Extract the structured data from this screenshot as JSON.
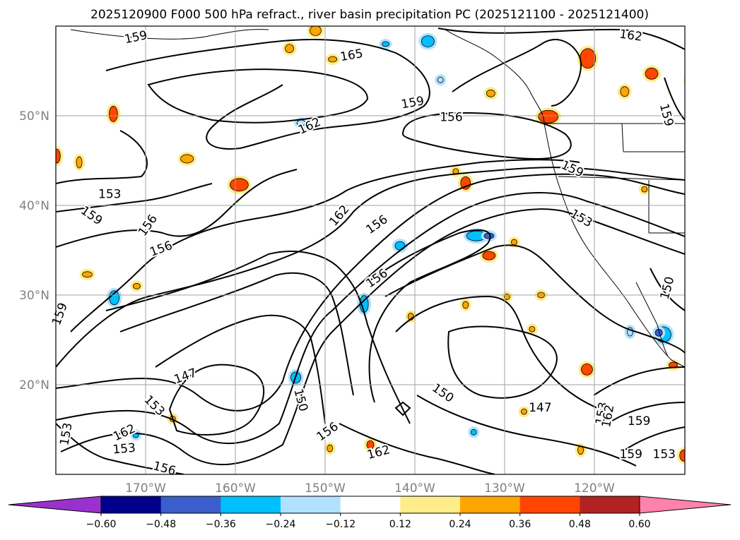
{
  "chart_data": {
    "type": "heatmap",
    "title": "2025120900 F000 500 hPa refract., river basin precipitation PC (2025121100 - 2025121400)",
    "xlabel": "",
    "ylabel": "",
    "xlim": [
      -180,
      -110
    ],
    "ylim": [
      10,
      60
    ],
    "lat_ticks": [
      {
        "value": 20,
        "label": "20°N"
      },
      {
        "value": 30,
        "label": "30°N"
      },
      {
        "value": 40,
        "label": "40°N"
      },
      {
        "value": 50,
        "label": "50°N"
      }
    ],
    "lon_ticks": [
      {
        "value": -170,
        "label": "170°W"
      },
      {
        "value": -160,
        "label": "160°W"
      },
      {
        "value": -150,
        "label": "150°W"
      },
      {
        "value": -140,
        "label": "140°W"
      },
      {
        "value": -130,
        "label": "130°W"
      },
      {
        "value": -120,
        "label": "120°W"
      }
    ],
    "grid": true,
    "colorbar": {
      "ticks": [
        {
          "value": -0.6,
          "label": "−0.60"
        },
        {
          "value": -0.48,
          "label": "−0.48"
        },
        {
          "value": -0.36,
          "label": "−0.36"
        },
        {
          "value": -0.24,
          "label": "−0.24"
        },
        {
          "value": -0.12,
          "label": "−0.12"
        },
        {
          "value": 0.12,
          "label": "0.12"
        },
        {
          "value": 0.24,
          "label": "0.24"
        },
        {
          "value": 0.36,
          "label": "0.36"
        },
        {
          "value": 0.48,
          "label": "0.48"
        },
        {
          "value": 0.6,
          "label": "0.60"
        }
      ],
      "colors": [
        "#9932cc",
        "#00008b",
        "#3a5fcd",
        "#00bfff",
        "#b0e2ff",
        "#ffffff",
        "#ffec8b",
        "#ffa500",
        "#ff4500",
        "#b22222",
        "#ff82ab"
      ],
      "extend": "both"
    },
    "contour_labels": [
      {
        "text": "159",
        "lon": -171.1,
        "lat": 58.8,
        "rot": -12
      },
      {
        "text": "165",
        "lon": -147.1,
        "lat": 56.8,
        "rot": -10
      },
      {
        "text": "162",
        "lon": -116.0,
        "lat": 59.0,
        "rot": 8
      },
      {
        "text": "159",
        "lon": -140.3,
        "lat": 51.5,
        "rot": -10
      },
      {
        "text": "156",
        "lon": -136.0,
        "lat": 49.9,
        "rot": 0
      },
      {
        "text": "162",
        "lon": -151.8,
        "lat": 48.9,
        "rot": -25
      },
      {
        "text": "159",
        "lon": -112.0,
        "lat": 50.1,
        "rot": 75
      },
      {
        "text": "159",
        "lon": -122.5,
        "lat": 44.1,
        "rot": 25
      },
      {
        "text": "153",
        "lon": -174.0,
        "lat": 41.3,
        "rot": 0
      },
      {
        "text": "159",
        "lon": -176.0,
        "lat": 38.9,
        "rot": 35
      },
      {
        "text": "156",
        "lon": -169.8,
        "lat": 37.8,
        "rot": -55
      },
      {
        "text": "156",
        "lon": -168.3,
        "lat": 35.2,
        "rot": -20
      },
      {
        "text": "162",
        "lon": -148.5,
        "lat": 38.9,
        "rot": -50
      },
      {
        "text": "153",
        "lon": -121.5,
        "lat": 38.6,
        "rot": 30
      },
      {
        "text": "156",
        "lon": -144.3,
        "lat": 37.9,
        "rot": -35
      },
      {
        "text": "156",
        "lon": -144.3,
        "lat": 31.9,
        "rot": -35
      },
      {
        "text": "150",
        "lon": -112.0,
        "lat": 30.8,
        "rot": -75
      },
      {
        "text": "147",
        "lon": -165.6,
        "lat": 21.0,
        "rot": -20
      },
      {
        "text": "153",
        "lon": -169.0,
        "lat": 17.7,
        "rot": 45
      },
      {
        "text": "150",
        "lon": -152.7,
        "lat": 18.3,
        "rot": 75
      },
      {
        "text": "150",
        "lon": -136.9,
        "lat": 19.1,
        "rot": 35
      },
      {
        "text": "147",
        "lon": -126.1,
        "lat": 17.5,
        "rot": 0
      },
      {
        "text": "162",
        "lon": -172.4,
        "lat": 14.7,
        "rot": -25
      },
      {
        "text": "153",
        "lon": -172.4,
        "lat": 12.9,
        "rot": -5
      },
      {
        "text": "153",
        "lon": -178.9,
        "lat": 14.5,
        "rot": -80
      },
      {
        "text": "156",
        "lon": -167.9,
        "lat": 10.7,
        "rot": 15
      },
      {
        "text": "156",
        "lon": -149.8,
        "lat": 14.8,
        "rot": -35
      },
      {
        "text": "162",
        "lon": -144.1,
        "lat": 12.5,
        "rot": -15
      },
      {
        "text": "159",
        "lon": -115.1,
        "lat": 16.0,
        "rot": 0
      },
      {
        "text": "159",
        "lon": -116.0,
        "lat": 12.3,
        "rot": 0
      },
      {
        "text": "153",
        "lon": -112.3,
        "lat": 12.3,
        "rot": 0
      },
      {
        "text": "153",
        "lon": -119.3,
        "lat": 16.8,
        "rot": -80
      },
      {
        "text": "162",
        "lon": -118.6,
        "lat": 16.5,
        "rot": -80
      },
      {
        "text": "159",
        "lon": -179.6,
        "lat": 27.9,
        "rot": -70
      }
    ],
    "precip_patches": [
      {
        "lon": -173.6,
        "lat": 50.2,
        "w": 12,
        "h": 22,
        "value": 0.36
      },
      {
        "lon": -179.9,
        "lat": 45.5,
        "w": 10,
        "h": 20,
        "value": 0.36
      },
      {
        "lon": -177.4,
        "lat": 44.8,
        "w": 8,
        "h": 16,
        "value": 0.24
      },
      {
        "lon": -165.4,
        "lat": 45.2,
        "w": 18,
        "h": 12,
        "value": 0.24
      },
      {
        "lon": -159.6,
        "lat": 42.3,
        "w": 26,
        "h": 18,
        "value": 0.36
      },
      {
        "lon": -151.1,
        "lat": 59.5,
        "w": 16,
        "h": 14,
        "value": 0.24
      },
      {
        "lon": -154.0,
        "lat": 57.5,
        "w": 12,
        "h": 12,
        "value": 0.24
      },
      {
        "lon": -149.2,
        "lat": 56.3,
        "w": 12,
        "h": 8,
        "value": 0.24
      },
      {
        "lon": -143.3,
        "lat": 58.0,
        "w": 10,
        "h": 7,
        "value": -0.36
      },
      {
        "lon": -138.6,
        "lat": 58.3,
        "w": 18,
        "h": 16,
        "value": -0.36
      },
      {
        "lon": -120.8,
        "lat": 56.4,
        "w": 22,
        "h": 28,
        "value": 0.36
      },
      {
        "lon": -113.7,
        "lat": 54.7,
        "w": 18,
        "h": 16,
        "value": 0.36
      },
      {
        "lon": -109.2,
        "lat": 53.9,
        "w": 16,
        "h": 14,
        "value": 0.36
      },
      {
        "lon": -116.7,
        "lat": 52.7,
        "w": 12,
        "h": 14,
        "value": 0.24
      },
      {
        "lon": -125.2,
        "lat": 49.9,
        "w": 28,
        "h": 18,
        "value": 0.36
      },
      {
        "lon": -131.6,
        "lat": 52.5,
        "w": 12,
        "h": 10,
        "value": 0.24
      },
      {
        "lon": -137.2,
        "lat": 54.0,
        "w": 8,
        "h": 8,
        "value": -0.24
      },
      {
        "lon": -152.7,
        "lat": 49.2,
        "w": 12,
        "h": 8,
        "value": -0.24
      },
      {
        "lon": -134.4,
        "lat": 42.5,
        "w": 14,
        "h": 18,
        "value": 0.36
      },
      {
        "lon": -133.2,
        "lat": 36.6,
        "w": 28,
        "h": 14,
        "value": -0.36
      },
      {
        "lon": -131.8,
        "lat": 36.6,
        "w": 14,
        "h": 8,
        "value": -0.48
      },
      {
        "lon": -131.8,
        "lat": 34.4,
        "w": 18,
        "h": 12,
        "value": 0.36
      },
      {
        "lon": -141.7,
        "lat": 35.5,
        "w": 14,
        "h": 12,
        "value": -0.36
      },
      {
        "lon": -145.7,
        "lat": 29.0,
        "w": 12,
        "h": 24,
        "value": -0.36
      },
      {
        "lon": -173.5,
        "lat": 29.7,
        "w": 14,
        "h": 20,
        "value": -0.36
      },
      {
        "lon": -153.3,
        "lat": 20.8,
        "w": 14,
        "h": 16,
        "value": -0.36
      },
      {
        "lon": -145.0,
        "lat": 13.3,
        "w": 10,
        "h": 12,
        "value": 0.36
      },
      {
        "lon": -112.4,
        "lat": 25.6,
        "w": 22,
        "h": 22,
        "value": -0.36
      },
      {
        "lon": -112.9,
        "lat": 25.8,
        "w": 10,
        "h": 10,
        "value": -0.48
      },
      {
        "lon": -116.1,
        "lat": 25.9,
        "w": 8,
        "h": 12,
        "value": -0.24
      },
      {
        "lon": -120.9,
        "lat": 21.7,
        "w": 16,
        "h": 16,
        "value": 0.36
      },
      {
        "lon": -111.3,
        "lat": 22.2,
        "w": 12,
        "h": 8,
        "value": 0.36
      },
      {
        "lon": -110.1,
        "lat": 12.1,
        "w": 12,
        "h": 16,
        "value": 0.36
      },
      {
        "lon": -129.0,
        "lat": 35.9,
        "w": 8,
        "h": 8,
        "value": 0.24
      },
      {
        "lon": -134.4,
        "lat": 28.9,
        "w": 8,
        "h": 10,
        "value": 0.24
      },
      {
        "lon": -140.5,
        "lat": 27.6,
        "w": 8,
        "h": 10,
        "value": 0.24
      },
      {
        "lon": -129.8,
        "lat": 29.8,
        "w": 8,
        "h": 8,
        "value": 0.24
      },
      {
        "lon": -121.6,
        "lat": 12.7,
        "w": 8,
        "h": 12,
        "value": 0.24
      },
      {
        "lon": -171.0,
        "lat": 31.0,
        "w": 10,
        "h": 8,
        "value": 0.24
      },
      {
        "lon": -176.5,
        "lat": 32.3,
        "w": 14,
        "h": 8,
        "value": 0.24
      },
      {
        "lon": -167.0,
        "lat": 16.2,
        "w": 8,
        "h": 8,
        "value": 0.24
      },
      {
        "lon": -171.1,
        "lat": 14.4,
        "w": 8,
        "h": 8,
        "value": -0.36
      },
      {
        "lon": -149.5,
        "lat": 12.9,
        "w": 8,
        "h": 10,
        "value": 0.24
      },
      {
        "lon": -135.5,
        "lat": 43.8,
        "w": 8,
        "h": 8,
        "value": 0.24
      },
      {
        "lon": -126.0,
        "lat": 30.0,
        "w": 10,
        "h": 8,
        "value": 0.24
      },
      {
        "lon": -127.0,
        "lat": 26.2,
        "w": 8,
        "h": 8,
        "value": 0.24
      },
      {
        "lon": -114.5,
        "lat": 41.8,
        "w": 8,
        "h": 8,
        "value": 0.24
      },
      {
        "lon": -133.5,
        "lat": 14.7,
        "w": 8,
        "h": 8,
        "value": -0.36
      },
      {
        "lon": -127.9,
        "lat": 17.0,
        "w": 8,
        "h": 8,
        "value": 0.24
      }
    ]
  }
}
